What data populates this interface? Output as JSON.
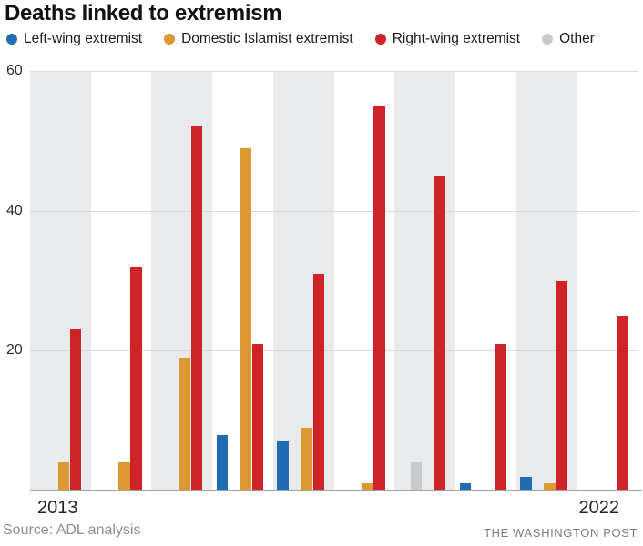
{
  "title": "Deaths linked to extremism",
  "legend": [
    {
      "key": "left-wing",
      "label": "Left-wing extremist",
      "color": "#1f6cb4"
    },
    {
      "key": "islamist",
      "label": "Domestic Islamist extremist",
      "color": "#dd9733"
    },
    {
      "key": "right-wing",
      "label": "Right-wing extremist",
      "color": "#ce2427"
    },
    {
      "key": "other",
      "label": "Other",
      "color": "#c8cacb"
    }
  ],
  "chart_data": {
    "type": "bar",
    "title": "Deaths linked to extremism",
    "categories": [
      "2013",
      "2014",
      "2015",
      "2016",
      "2017",
      "2018",
      "2019",
      "2020",
      "2021",
      "2022"
    ],
    "series": [
      {
        "key": "left-wing",
        "name": "Left-wing extremist",
        "color": "#1f6cb4",
        "values": [
          0,
          0,
          0,
          8,
          7,
          0,
          0,
          1,
          2,
          0
        ]
      },
      {
        "key": "islamist",
        "name": "Domestic Islamist extremist",
        "color": "#dd9733",
        "values": [
          4,
          4,
          19,
          49,
          9,
          1,
          0,
          0,
          1,
          0
        ]
      },
      {
        "key": "right-wing",
        "name": "Right-wing extremist",
        "color": "#ce2427",
        "values": [
          23,
          32,
          52,
          21,
          31,
          55,
          45,
          21,
          30,
          25
        ]
      },
      {
        "key": "other",
        "name": "Other",
        "color": "#c8cacb",
        "values": [
          0,
          0,
          0,
          0,
          0,
          0,
          4,
          0,
          0,
          0
        ]
      }
    ],
    "bar_slot_order": [
      "left-wing",
      "other",
      "islamist",
      "right-wing"
    ],
    "xlabel": "",
    "ylabel": "",
    "ylim": [
      0,
      60
    ],
    "yticks": [
      20,
      40,
      60
    ],
    "x_tick_labels_shown": [
      "2013",
      "2022"
    ],
    "grid": "horizontal",
    "legend_position": "top",
    "band_shading": "alternate-years-starting-2013"
  },
  "footer": {
    "source": "Source: ADL analysis",
    "credit": "THE WASHINGTON POST"
  }
}
